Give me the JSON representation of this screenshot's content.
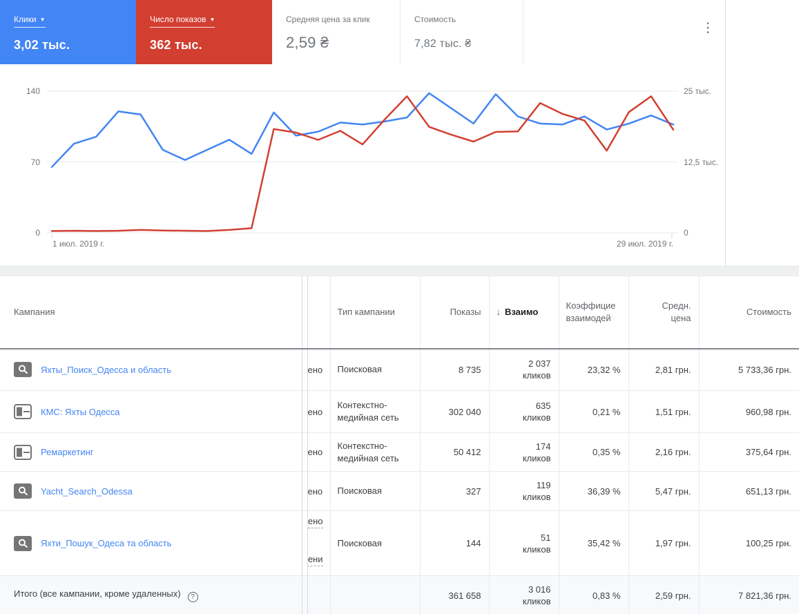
{
  "scorecards": {
    "cards": [
      {
        "label": "Клики",
        "value": "3,02 тыс.",
        "selected": true,
        "has_dropdown": true,
        "color": "#4285f4"
      },
      {
        "label": "Число показов",
        "value": "362 тыс.",
        "selected": true,
        "has_dropdown": true,
        "color": "#d23f31"
      },
      {
        "label": "Средняя цена за клик",
        "value": "2,59 ₴",
        "selected": false,
        "has_dropdown": false
      },
      {
        "label": "Стоимость",
        "value": "7,82 тыс. ₴",
        "selected": false,
        "has_dropdown": false
      }
    ]
  },
  "chart_data": {
    "type": "line",
    "x": [
      1,
      2,
      3,
      4,
      5,
      6,
      7,
      8,
      9,
      10,
      11,
      12,
      13,
      14,
      15,
      16,
      17,
      18,
      19,
      20,
      21,
      22,
      23,
      24,
      25,
      26,
      27,
      28,
      29
    ],
    "x_start_label": "1 июл. 2019 г.",
    "x_end_label": "29 июл. 2019 г.",
    "left_axis": {
      "min": 0,
      "max": 140,
      "ticks": [
        "140",
        "70",
        "0"
      ]
    },
    "right_axis": {
      "min": 0,
      "max": 25000,
      "ticks": [
        "25 тыс.",
        "12,5 тыс.",
        "0"
      ]
    },
    "grid": true,
    "legend_position": "none",
    "series": [
      {
        "name": "Клики",
        "axis": "left",
        "color": "#4285f4",
        "values": [
          65,
          88,
          95,
          120,
          117,
          82,
          72,
          82,
          92,
          78,
          119,
          96,
          100,
          109,
          107,
          110,
          114,
          138,
          123,
          108,
          137,
          115,
          108,
          107,
          115,
          102,
          108,
          116,
          107
        ]
      },
      {
        "name": "Число показов",
        "axis": "right",
        "color": "#d23f31",
        "values": [
          300,
          350,
          300,
          350,
          500,
          400,
          350,
          300,
          500,
          800,
          18300,
          17700,
          16400,
          18000,
          15600,
          20000,
          24100,
          18700,
          17300,
          16100,
          17800,
          17900,
          22900,
          21000,
          19800,
          14500,
          21300,
          24100,
          18200
        ]
      }
    ]
  },
  "table": {
    "columns": [
      {
        "label": "Кампания"
      },
      {
        "label": ""
      },
      {
        "label": ""
      },
      {
        "label": "Тип кампании"
      },
      {
        "label": "Показы"
      },
      {
        "label": "Взаимо",
        "sorted": "desc"
      },
      {
        "label_lines": [
          "Коэффицие",
          "взаимодей"
        ]
      },
      {
        "label_lines": [
          "Средн.",
          "цена"
        ]
      },
      {
        "label": "Стоимость"
      }
    ],
    "rows": [
      {
        "icon": "search-campaign",
        "name": "Яхты_Поиск_Одесса и область",
        "status": "ено",
        "type": "Поисковая",
        "impressions": "8 735",
        "interactions": "2 037",
        "interactions_unit": "кликов",
        "rate": "23,32 %",
        "avg_cost": "2,81 грн.",
        "cost": "5 733,36 грн."
      },
      {
        "icon": "display-campaign",
        "name": "КМС: Яхты Одесса",
        "status": "ено",
        "type": "Контекстно-медийная сеть",
        "impressions": "302 040",
        "interactions": "635",
        "interactions_unit": "кликов",
        "rate": "0,21 %",
        "avg_cost": "1,51 грн.",
        "cost": "960,98 грн."
      },
      {
        "icon": "display-campaign",
        "name": "Ремаркетинг",
        "status": "ено",
        "type": "Контекстно-медийная сеть",
        "impressions": "50 412",
        "interactions": "174",
        "interactions_unit": "кликов",
        "rate": "0,35 %",
        "avg_cost": "2,16 грн.",
        "cost": "375,64 грн."
      },
      {
        "icon": "search-campaign",
        "name": "Yacht_Search_Odessa",
        "status": "ено",
        "type": "Поисковая",
        "impressions": "327",
        "interactions": "119",
        "interactions_unit": "кликов",
        "rate": "36,39 %",
        "avg_cost": "5,47 грн.",
        "cost": "651,13 грн."
      },
      {
        "icon": "search-campaign",
        "name": "Яхти_Пошук_Одеса та область",
        "status": "ено",
        "status2": "чени",
        "type": "Поисковая",
        "impressions": "144",
        "interactions": "51",
        "interactions_unit": "кликов",
        "rate": "35,42 %",
        "avg_cost": "1,97 грн.",
        "cost": "100,25 грн."
      }
    ],
    "total": {
      "label": "Итого (все кампании, кроме удаленных)",
      "impressions": "361 658",
      "interactions": "3 016",
      "interactions_unit": "кликов",
      "rate": "0,83 %",
      "avg_cost": "2,59 грн.",
      "cost": "7 821,36 грн."
    }
  }
}
